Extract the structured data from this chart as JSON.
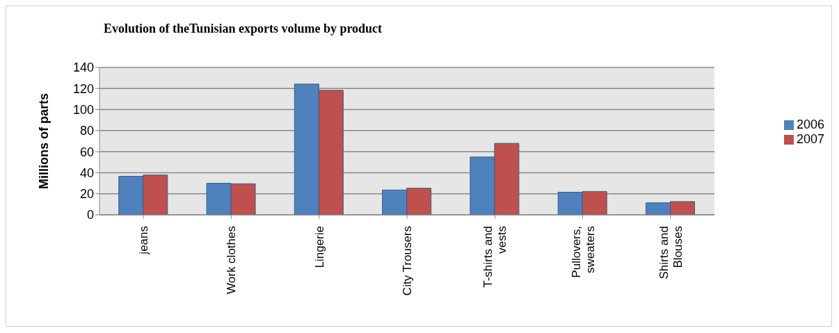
{
  "chart_data": {
    "type": "bar",
    "title": "Evolution of theTunisian exports volume by product",
    "ylabel": "Millions of parts",
    "categories": [
      "jeans",
      "Work clothes",
      "Lingerie",
      "City Trousers",
      "T-shirts and vests",
      "Pullovers, sweaters",
      "Shirts and Blouses"
    ],
    "series": [
      {
        "name": "2006",
        "color": "#4f81bd",
        "values": [
          36.6,
          30,
          124.2,
          23.6,
          54.9,
          21.5,
          11.4
        ]
      },
      {
        "name": "2007",
        "color": "#c0504d",
        "values": [
          37.8,
          29.5,
          118.3,
          25.3,
          67.9,
          22.2,
          12.6
        ]
      }
    ],
    "ylim": [
      0,
      140
    ],
    "yticks": [
      0,
      20,
      40,
      60,
      80,
      100,
      120,
      140
    ],
    "grid": "y",
    "legend": "right"
  }
}
